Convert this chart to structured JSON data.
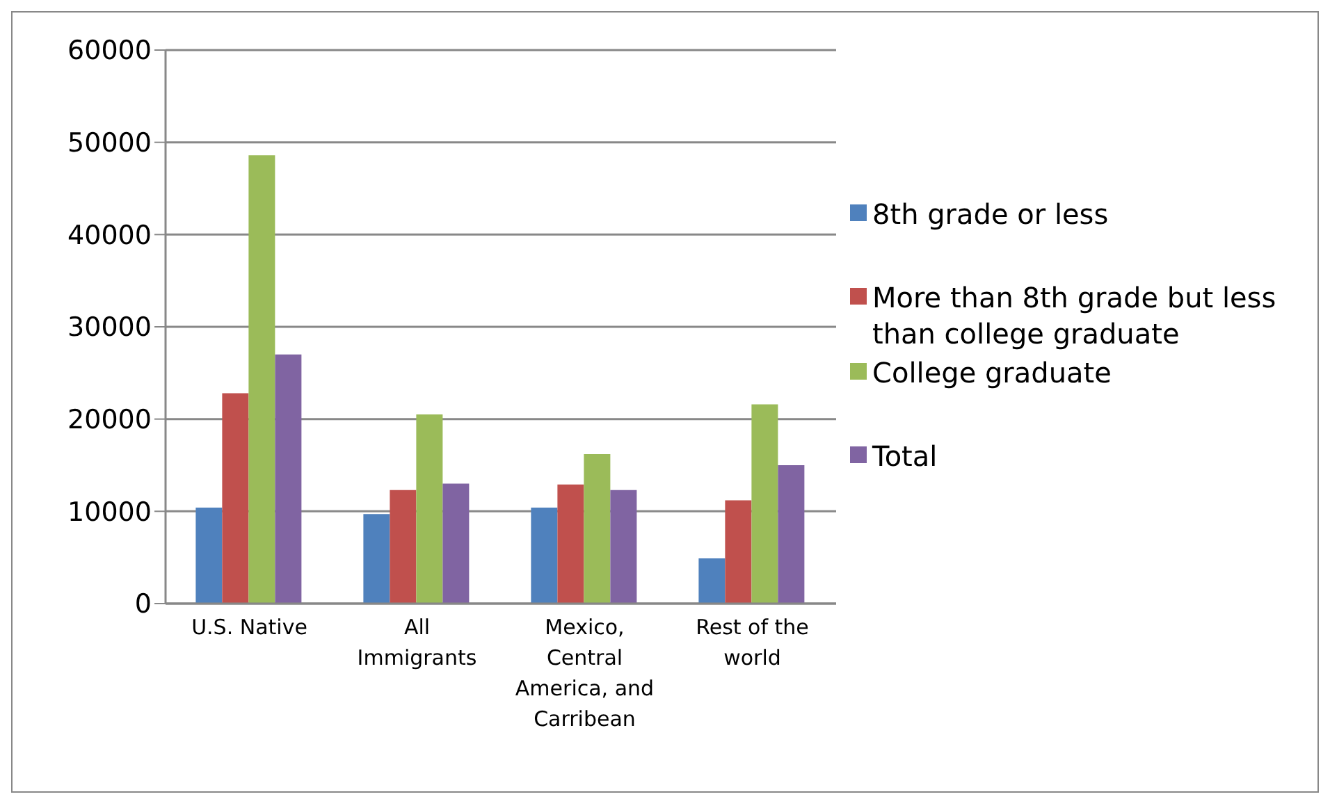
{
  "chart_data": {
    "type": "bar",
    "categories": [
      "U.S. Native",
      "All Immigrants",
      "Mexico, Central America, and Carribean",
      "Rest of the world"
    ],
    "series": [
      {
        "name": "8th grade or less",
        "color": "#4f81bd",
        "values": [
          10400,
          9700,
          10400,
          4900
        ]
      },
      {
        "name": "More than 8th grade but less than college graduate",
        "color": "#c0504d",
        "values": [
          22800,
          12300,
          12900,
          11200
        ]
      },
      {
        "name": "College graduate",
        "color": "#9bbb59",
        "values": [
          48600,
          20500,
          16200,
          21600
        ]
      },
      {
        "name": "Total",
        "color": "#8064a2",
        "values": [
          27000,
          13000,
          12300,
          15000
        ]
      }
    ],
    "ylim": [
      0,
      60000
    ],
    "yticks": [
      0,
      10000,
      20000,
      30000,
      40000,
      50000,
      60000
    ],
    "grid": "y",
    "legend": "right"
  }
}
